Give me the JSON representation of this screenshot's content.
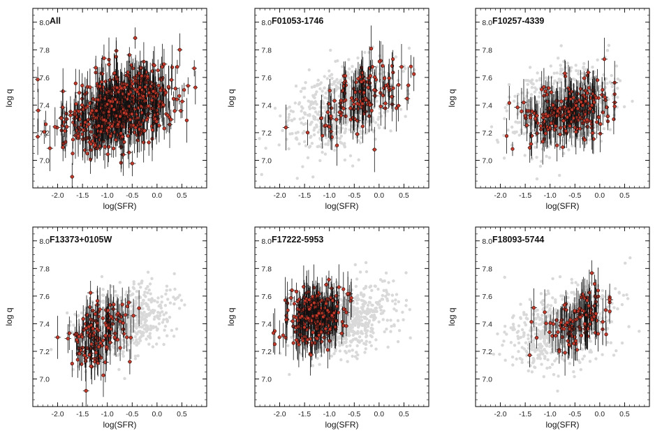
{
  "chart_data": [
    {
      "type": "scatter",
      "title": "All",
      "xlabel": "log(SFR)",
      "ylabel": "log q",
      "xlim": [
        -2.5,
        1.0
      ],
      "ylim": [
        6.8,
        8.1
      ],
      "xticks": [
        "-2.0",
        "-1.5",
        "-1.0",
        "-0.5",
        "0.0",
        "0.5"
      ],
      "yticks": [
        "7.0",
        "7.2",
        "7.4",
        "7.6",
        "7.8",
        "8.0"
      ],
      "series": [
        {
          "name": "all spaxels (background)",
          "color": "#d9d9d9",
          "center": [
            -0.8,
            7.38
          ],
          "spread": [
            0.5,
            0.13
          ],
          "slope": 0.1,
          "count": 0
        },
        {
          "name": "spaxels with error bars",
          "color": "#c0392b",
          "center": [
            -0.75,
            7.38
          ],
          "spread": [
            0.55,
            0.14
          ],
          "slope": 0.1,
          "count": 650,
          "xrange": [
            -2.4,
            0.8
          ]
        }
      ]
    },
    {
      "type": "scatter",
      "title": "F01053-1746",
      "xlabel": "log(SFR)",
      "ylabel": "log q",
      "xlim": [
        -2.5,
        1.0
      ],
      "ylim": [
        6.8,
        8.1
      ],
      "xticks": [
        "-2.0",
        "-1.5",
        "-1.0",
        "-0.5",
        "0.0",
        "0.5"
      ],
      "yticks": [
        "7.0",
        "7.2",
        "7.4",
        "7.6",
        "7.8",
        "8.0"
      ],
      "series": [
        {
          "name": "all spaxels (background)",
          "color": "#d9d9d9",
          "center": [
            -0.75,
            7.38
          ],
          "spread": [
            0.5,
            0.14
          ],
          "slope": 0.1,
          "count": 700
        },
        {
          "name": "spaxels with error bars",
          "color": "#c0392b",
          "center": [
            -0.4,
            7.45
          ],
          "spread": [
            0.45,
            0.12
          ],
          "slope": 0.22,
          "count": 140,
          "xrange": [
            -2.2,
            0.7
          ]
        }
      ]
    },
    {
      "type": "scatter",
      "title": "F10257-4339",
      "xlabel": "log(SFR)",
      "ylabel": "log q",
      "xlim": [
        -2.5,
        1.0
      ],
      "ylim": [
        6.8,
        8.1
      ],
      "xticks": [
        "-2.0",
        "-1.5",
        "-1.0",
        "-0.5",
        "0.0",
        "0.5"
      ],
      "yticks": [
        "7.0",
        "7.2",
        "7.4",
        "7.6",
        "7.8",
        "8.0"
      ],
      "series": [
        {
          "name": "all spaxels (background)",
          "color": "#d9d9d9",
          "center": [
            -0.75,
            7.38
          ],
          "spread": [
            0.5,
            0.14
          ],
          "slope": 0.1,
          "count": 700
        },
        {
          "name": "spaxels with error bars",
          "color": "#c0392b",
          "center": [
            -0.6,
            7.35
          ],
          "spread": [
            0.5,
            0.1
          ],
          "slope": 0.08,
          "count": 230,
          "xrange": [
            -2.3,
            0.3
          ]
        }
      ]
    },
    {
      "type": "scatter",
      "title": "F13373+0105W",
      "xlabel": "log(SFR)",
      "ylabel": "log q",
      "xlim": [
        -2.5,
        1.0
      ],
      "ylim": [
        6.8,
        8.1
      ],
      "xticks": [
        "-2.0",
        "-1.5",
        "-1.0",
        "-0.5",
        "0.0",
        "0.5"
      ],
      "yticks": [
        "7.0",
        "7.2",
        "7.4",
        "7.6",
        "7.8",
        "8.0"
      ],
      "series": [
        {
          "name": "all spaxels (background)",
          "color": "#d9d9d9",
          "center": [
            -0.7,
            7.4
          ],
          "spread": [
            0.45,
            0.12
          ],
          "slope": 0.1,
          "count": 700
        },
        {
          "name": "spaxels with error bars",
          "color": "#c0392b",
          "center": [
            -1.2,
            7.3
          ],
          "spread": [
            0.3,
            0.13
          ],
          "slope": 0.15,
          "count": 150,
          "xrange": [
            -2.2,
            0.0
          ]
        }
      ]
    },
    {
      "type": "scatter",
      "title": "F17222-5953",
      "xlabel": "log(SFR)",
      "ylabel": "log q",
      "xlim": [
        -2.5,
        1.0
      ],
      "ylim": [
        6.8,
        8.1
      ],
      "xticks": [
        "-2.0",
        "-1.5",
        "-1.0",
        "-0.5",
        "0.0",
        "0.5"
      ],
      "yticks": [
        "7.0",
        "7.2",
        "7.4",
        "7.6",
        "7.8",
        "8.0"
      ],
      "series": [
        {
          "name": "all spaxels (background)",
          "color": "#d9d9d9",
          "center": [
            -0.7,
            7.42
          ],
          "spread": [
            0.45,
            0.12
          ],
          "slope": 0.1,
          "count": 700
        },
        {
          "name": "spaxels with error bars",
          "color": "#c0392b",
          "center": [
            -1.25,
            7.45
          ],
          "spread": [
            0.3,
            0.1
          ],
          "slope": 0.1,
          "count": 260,
          "xrange": [
            -2.4,
            -0.3
          ]
        }
      ]
    },
    {
      "type": "scatter",
      "title": "F18093-5744",
      "xlabel": "log(SFR)",
      "ylabel": "log q",
      "xlim": [
        -2.5,
        1.0
      ],
      "ylim": [
        6.8,
        8.1
      ],
      "xticks": [
        "-2.0",
        "-1.5",
        "-1.0",
        "-0.5",
        "0.0",
        "0.5"
      ],
      "yticks": [
        "7.0",
        "7.2",
        "7.4",
        "7.6",
        "7.8",
        "8.0"
      ],
      "series": [
        {
          "name": "all spaxels (background)",
          "color": "#d9d9d9",
          "center": [
            -0.8,
            7.38
          ],
          "spread": [
            0.5,
            0.13
          ],
          "slope": 0.1,
          "count": 700
        },
        {
          "name": "spaxels with error bars",
          "color": "#c0392b",
          "center": [
            -0.45,
            7.42
          ],
          "spread": [
            0.4,
            0.1
          ],
          "slope": 0.15,
          "count": 120,
          "xrange": [
            -2.4,
            0.2
          ]
        }
      ]
    }
  ]
}
